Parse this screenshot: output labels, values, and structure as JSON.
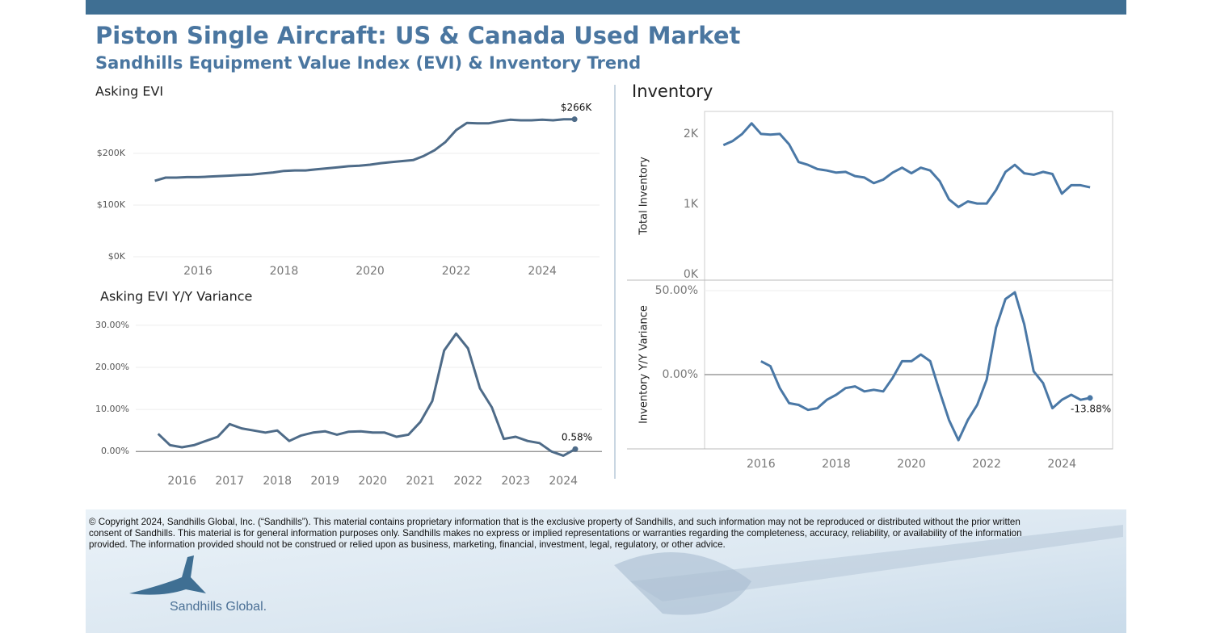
{
  "header": {
    "title": "Piston Single Aircraft:  US & Canada Used Market",
    "subtitle": "Sandhills Equipment Value Index (EVI) & Inventory Trend"
  },
  "chart_data": [
    {
      "type": "line",
      "title": "Asking EVI",
      "color": "#4e6b88",
      "grid": true,
      "x": [
        2015.0,
        2015.25,
        2015.5,
        2015.75,
        2016.0,
        2016.25,
        2016.5,
        2016.75,
        2017.0,
        2017.25,
        2017.5,
        2017.75,
        2018.0,
        2018.25,
        2018.5,
        2018.75,
        2019.0,
        2019.25,
        2019.5,
        2019.75,
        2020.0,
        2020.25,
        2020.5,
        2020.75,
        2021.0,
        2021.25,
        2021.5,
        2021.75,
        2022.0,
        2022.25,
        2022.5,
        2022.75,
        2023.0,
        2023.25,
        2023.5,
        2023.75,
        2024.0,
        2024.25,
        2024.5,
        2024.75
      ],
      "values": [
        147000,
        153000,
        153000,
        154000,
        154000,
        155000,
        156000,
        157000,
        158000,
        159000,
        161000,
        163000,
        166000,
        167000,
        167000,
        169000,
        171000,
        173000,
        175000,
        176000,
        178000,
        181000,
        183000,
        185000,
        187000,
        195000,
        206000,
        222000,
        245000,
        259000,
        258000,
        258000,
        262000,
        265000,
        264000,
        264000,
        265000,
        264000,
        266000,
        266000
      ],
      "value_labels": {
        "39": "$266K"
      },
      "xlim": [
        2014.5,
        2025.33
      ],
      "xticks": [
        2016,
        2018,
        2020,
        2022,
        2024
      ],
      "ylim": [
        0,
        278000
      ],
      "yticks": [
        {
          "value": 0,
          "label": "$0K"
        },
        {
          "value": 100000,
          "label": "$100K"
        },
        {
          "value": 200000,
          "label": "$200K"
        }
      ]
    },
    {
      "type": "line",
      "title": "Asking EVI Y/Y Variance",
      "color": "#4e6b88",
      "grid": true,
      "x": [
        2015.5,
        2015.75,
        2016.0,
        2016.25,
        2016.5,
        2016.75,
        2017.0,
        2017.25,
        2017.5,
        2017.75,
        2018.0,
        2018.25,
        2018.5,
        2018.75,
        2019.0,
        2019.25,
        2019.5,
        2019.75,
        2020.0,
        2020.25,
        2020.5,
        2020.75,
        2021.0,
        2021.25,
        2021.5,
        2021.75,
        2022.0,
        2022.25,
        2022.5,
        2022.75,
        2023.0,
        2023.25,
        2023.5,
        2023.75,
        2024.0,
        2024.25
      ],
      "values": [
        4.2,
        1.5,
        1.0,
        1.5,
        2.5,
        3.5,
        6.5,
        5.5,
        5.0,
        4.5,
        5.0,
        2.5,
        3.8,
        4.5,
        4.8,
        4.0,
        4.7,
        4.8,
        4.5,
        4.5,
        3.5,
        4.0,
        7.0,
        12.0,
        24.0,
        28.0,
        24.5,
        15.0,
        10.5,
        3.0,
        3.5,
        2.5,
        2.0,
        0.0,
        -1.0,
        0.58
      ],
      "value_labels": {
        "35": "0.58%"
      },
      "xlim": [
        2015.03,
        2024.81
      ],
      "xticks": [
        2016,
        2017,
        2018,
        2019,
        2020,
        2021,
        2022,
        2023,
        2024
      ],
      "ylim": [
        -3.6,
        31.5
      ],
      "yticks": [
        {
          "value": 0,
          "label": "0.00%"
        },
        {
          "value": 10,
          "label": "10.00%"
        },
        {
          "value": 20,
          "label": "20.00%"
        },
        {
          "value": 30,
          "label": "30.00%"
        }
      ]
    },
    {
      "type": "line",
      "title": "Inventory",
      "y_label": "Total Inventory",
      "color": "#4a78a6",
      "grid": false,
      "x": [
        2015.0,
        2015.25,
        2015.5,
        2015.75,
        2016.0,
        2016.25,
        2016.5,
        2016.75,
        2017.0,
        2017.25,
        2017.5,
        2017.75,
        2018.0,
        2018.25,
        2018.5,
        2018.75,
        2019.0,
        2019.25,
        2019.5,
        2019.75,
        2020.0,
        2020.25,
        2020.5,
        2020.75,
        2021.0,
        2021.25,
        2021.5,
        2021.75,
        2022.0,
        2022.25,
        2022.5,
        2022.75,
        2023.0,
        2023.25,
        2023.5,
        2023.75,
        2024.0,
        2024.25,
        2024.5,
        2024.75
      ],
      "values": [
        1840,
        1900,
        2000,
        2150,
        2000,
        1990,
        2000,
        1850,
        1600,
        1560,
        1500,
        1480,
        1450,
        1460,
        1400,
        1380,
        1300,
        1350,
        1450,
        1520,
        1440,
        1520,
        1480,
        1330,
        1070,
        960,
        1040,
        1010,
        1010,
        1200,
        1460,
        1560,
        1440,
        1420,
        1460,
        1430,
        1150,
        1270,
        1270,
        1240
      ],
      "xlim": [
        2014.5,
        2025.35
      ],
      "ylim": [
        -80,
        2320
      ],
      "yticks": [
        {
          "value": 0,
          "label": "0K"
        },
        {
          "value": 1000,
          "label": "1K"
        },
        {
          "value": 2000,
          "label": "2K"
        }
      ]
    },
    {
      "type": "line",
      "y_label": "Inventory  Y/Y Variance",
      "color": "#4a78a6",
      "grid": true,
      "x": [
        2016.0,
        2016.25,
        2016.5,
        2016.75,
        2017.0,
        2017.25,
        2017.5,
        2017.75,
        2018.0,
        2018.25,
        2018.5,
        2018.75,
        2019.0,
        2019.25,
        2019.5,
        2019.75,
        2020.0,
        2020.25,
        2020.5,
        2020.75,
        2021.0,
        2021.25,
        2021.5,
        2021.75,
        2022.0,
        2022.25,
        2022.5,
        2022.75,
        2023.0,
        2023.25,
        2023.5,
        2023.75,
        2024.0,
        2024.25,
        2024.5,
        2024.75
      ],
      "values": [
        8,
        5,
        -8,
        -17,
        -18,
        -21,
        -20,
        -15,
        -12,
        -8,
        -7,
        -10,
        -9,
        -10,
        -2,
        8,
        8,
        12,
        8,
        -10,
        -27,
        -39,
        -27,
        -18,
        -3,
        28,
        45,
        49,
        30,
        2,
        -5,
        -20,
        -15,
        -12,
        -15,
        -13.88
      ],
      "value_labels": {
        "35": "-13.88%"
      },
      "xlim": [
        2014.5,
        2025.35
      ],
      "xticks": [
        2016,
        2018,
        2020,
        2022,
        2024
      ],
      "ylim": [
        -44.2,
        56.25
      ],
      "yticks": [
        {
          "value": 0,
          "label": "0.00%"
        },
        {
          "value": 50,
          "label": "50.00%"
        }
      ]
    }
  ],
  "footer": {
    "copyright": [
      "© Copyright 2024, Sandhills Global, Inc. (“Sandhills”). This material contains proprietary information that is the exclusive property of Sandhills, and such information may not be reproduced or distributed without the prior written",
      "consent of Sandhills. This material is for general information purposes only. Sandhills makes no express or implied representations or warranties regarding the completeness, accuracy, reliability, or availability of the information",
      "provided. The information provided should not be construed or relied upon as business, marketing, financial, investment, legal, regulatory, or other advice."
    ],
    "logo": "Sandhills Global."
  }
}
